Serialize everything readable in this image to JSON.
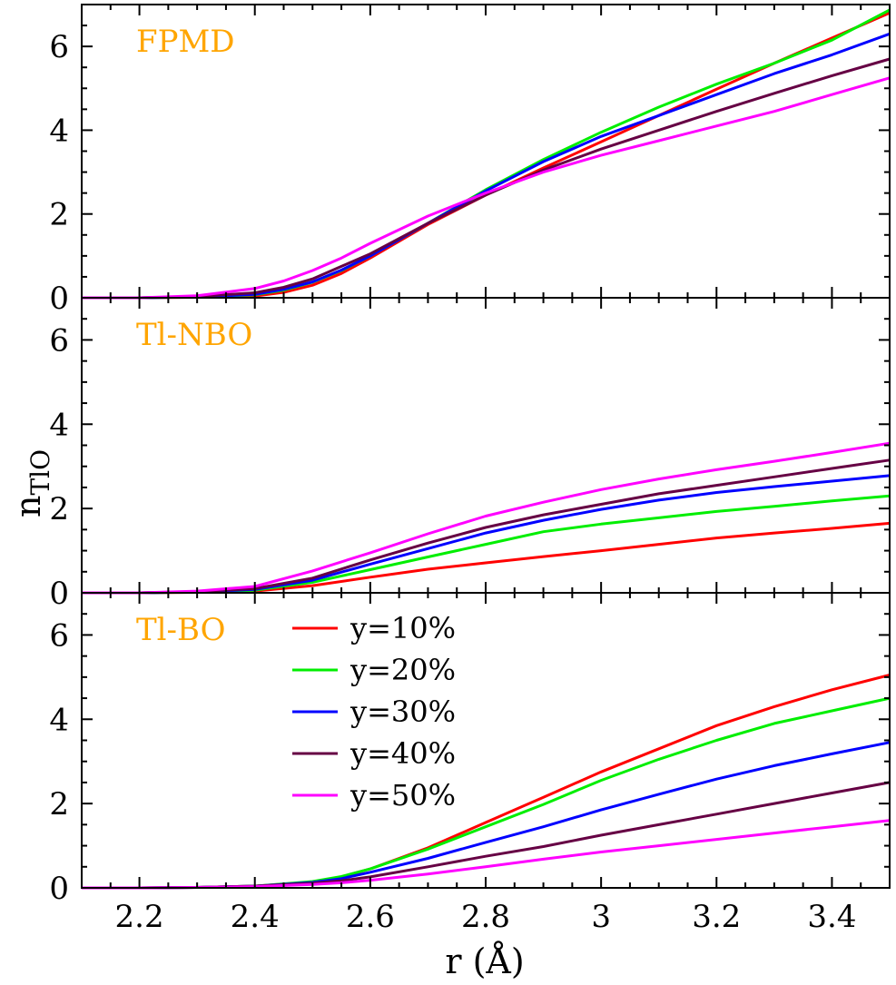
{
  "chart_data": {
    "type": "line",
    "xlabel": "r (Å)",
    "ylabel_main": "n",
    "ylabel_sub": "TlO",
    "xlim": [
      2.1,
      3.5
    ],
    "ylim": [
      0,
      7
    ],
    "xticks": [
      2.2,
      2.4,
      2.6,
      2.8,
      3.0,
      3.2,
      3.4
    ],
    "xtick_labels": [
      "2.2",
      "2.4",
      "2.6",
      "2.8",
      "3",
      "3.2",
      "3.4"
    ],
    "yticks": [
      0,
      2,
      4,
      6
    ],
    "ytick_labels": [
      "0",
      "2",
      "4",
      "6"
    ],
    "legend": {
      "placement": "bottom panel, upper-left",
      "entries": [
        {
          "name": "y=10%",
          "color": "#ff0000"
        },
        {
          "name": "y=20%",
          "color": "#00ee00"
        },
        {
          "name": "y=30%",
          "color": "#0000ff"
        },
        {
          "name": "y=40%",
          "color": "#660044"
        },
        {
          "name": "y=50%",
          "color": "#ff00ff"
        }
      ]
    },
    "panels": [
      {
        "label": "FPMD",
        "series": [
          {
            "name": "y=10%",
            "color": "#ff0000",
            "x": [
              2.1,
              2.2,
              2.3,
              2.4,
              2.45,
              2.5,
              2.55,
              2.6,
              2.7,
              2.8,
              2.9,
              3.0,
              3.1,
              3.2,
              3.3,
              3.4,
              3.5
            ],
            "y": [
              0,
              0,
              0.01,
              0.04,
              0.13,
              0.3,
              0.58,
              0.95,
              1.75,
              2.45,
              3.1,
              3.72,
              4.35,
              4.98,
              5.6,
              6.2,
              6.8
            ]
          },
          {
            "name": "y=20%",
            "color": "#00ee00",
            "x": [
              2.1,
              2.2,
              2.3,
              2.4,
              2.45,
              2.5,
              2.55,
              2.6,
              2.7,
              2.8,
              2.9,
              3.0,
              3.1,
              3.2,
              3.3,
              3.4,
              3.5
            ],
            "y": [
              0,
              0,
              0.02,
              0.07,
              0.18,
              0.37,
              0.65,
              1.0,
              1.78,
              2.58,
              3.3,
              3.95,
              4.55,
              5.1,
              5.6,
              6.15,
              6.87
            ]
          },
          {
            "name": "y=30%",
            "color": "#0000ff",
            "x": [
              2.1,
              2.2,
              2.3,
              2.4,
              2.45,
              2.5,
              2.55,
              2.6,
              2.7,
              2.8,
              2.9,
              3.0,
              3.1,
              3.2,
              3.3,
              3.4,
              3.5
            ],
            "y": [
              0,
              0,
              0.02,
              0.08,
              0.2,
              0.38,
              0.66,
              1.0,
              1.78,
              2.55,
              3.25,
              3.85,
              4.35,
              4.85,
              5.35,
              5.8,
              6.3
            ]
          },
          {
            "name": "y=40%",
            "color": "#660044",
            "x": [
              2.1,
              2.2,
              2.3,
              2.4,
              2.45,
              2.5,
              2.55,
              2.6,
              2.7,
              2.8,
              2.9,
              3.0,
              3.1,
              3.2,
              3.3,
              3.4,
              3.5
            ],
            "y": [
              0,
              0,
              0.03,
              0.12,
              0.25,
              0.45,
              0.75,
              1.05,
              1.78,
              2.45,
              3.05,
              3.55,
              4.0,
              4.45,
              4.88,
              5.3,
              5.7
            ]
          },
          {
            "name": "y=50%",
            "color": "#ff00ff",
            "x": [
              2.1,
              2.2,
              2.3,
              2.4,
              2.45,
              2.5,
              2.55,
              2.6,
              2.7,
              2.8,
              2.9,
              3.0,
              3.1,
              3.2,
              3.3,
              3.4,
              3.5
            ],
            "y": [
              0,
              0,
              0.05,
              0.22,
              0.4,
              0.65,
              0.95,
              1.3,
              1.95,
              2.5,
              3.0,
              3.4,
              3.75,
              4.1,
              4.45,
              4.85,
              5.25
            ]
          }
        ]
      },
      {
        "label": "Tl-NBO",
        "series": [
          {
            "name": "y=10%",
            "color": "#ff0000",
            "x": [
              2.1,
              2.2,
              2.3,
              2.4,
              2.5,
              2.6,
              2.7,
              2.8,
              2.9,
              3.0,
              3.1,
              3.2,
              3.3,
              3.4,
              3.5
            ],
            "y": [
              0,
              0,
              0.01,
              0.04,
              0.17,
              0.37,
              0.56,
              0.71,
              0.86,
              1.0,
              1.15,
              1.3,
              1.42,
              1.53,
              1.65
            ]
          },
          {
            "name": "y=20%",
            "color": "#00ee00",
            "x": [
              2.1,
              2.2,
              2.3,
              2.4,
              2.5,
              2.6,
              2.7,
              2.8,
              2.9,
              3.0,
              3.1,
              3.2,
              3.3,
              3.4,
              3.5
            ],
            "y": [
              0,
              0,
              0.02,
              0.06,
              0.25,
              0.55,
              0.85,
              1.15,
              1.45,
              1.63,
              1.78,
              1.93,
              2.05,
              2.18,
              2.3
            ]
          },
          {
            "name": "y=30%",
            "color": "#0000ff",
            "x": [
              2.1,
              2.2,
              2.3,
              2.4,
              2.5,
              2.6,
              2.7,
              2.8,
              2.9,
              3.0,
              3.1,
              3.2,
              3.3,
              3.4,
              3.5
            ],
            "y": [
              0,
              0,
              0.02,
              0.08,
              0.3,
              0.68,
              1.05,
              1.42,
              1.72,
              1.98,
              2.2,
              2.38,
              2.52,
              2.65,
              2.78
            ]
          },
          {
            "name": "y=40%",
            "color": "#660044",
            "x": [
              2.1,
              2.2,
              2.3,
              2.4,
              2.5,
              2.6,
              2.7,
              2.8,
              2.9,
              3.0,
              3.1,
              3.2,
              3.3,
              3.4,
              3.5
            ],
            "y": [
              0,
              0,
              0.03,
              0.1,
              0.35,
              0.78,
              1.18,
              1.55,
              1.85,
              2.1,
              2.35,
              2.55,
              2.75,
              2.95,
              3.15
            ]
          },
          {
            "name": "y=50%",
            "color": "#ff00ff",
            "x": [
              2.1,
              2.2,
              2.3,
              2.4,
              2.5,
              2.6,
              2.7,
              2.8,
              2.9,
              3.0,
              3.1,
              3.2,
              3.3,
              3.4,
              3.5
            ],
            "y": [
              0,
              0,
              0.04,
              0.15,
              0.52,
              0.95,
              1.4,
              1.82,
              2.15,
              2.45,
              2.7,
              2.92,
              3.12,
              3.33,
              3.55
            ]
          }
        ]
      },
      {
        "label": "Tl-BO",
        "series": [
          {
            "name": "y=10%",
            "color": "#ff0000",
            "x": [
              2.1,
              2.2,
              2.3,
              2.4,
              2.5,
              2.55,
              2.6,
              2.7,
              2.8,
              2.9,
              3.0,
              3.1,
              3.2,
              3.3,
              3.4,
              3.5
            ],
            "y": [
              0,
              0,
              0.01,
              0.04,
              0.14,
              0.26,
              0.45,
              0.95,
              1.55,
              2.15,
              2.75,
              3.3,
              3.85,
              4.3,
              4.7,
              5.05
            ]
          },
          {
            "name": "y=20%",
            "color": "#00ee00",
            "x": [
              2.1,
              2.2,
              2.3,
              2.4,
              2.5,
              2.55,
              2.6,
              2.7,
              2.8,
              2.9,
              3.0,
              3.1,
              3.2,
              3.3,
              3.4,
              3.5
            ],
            "y": [
              0,
              0,
              0.01,
              0.04,
              0.15,
              0.27,
              0.45,
              0.92,
              1.45,
              1.98,
              2.55,
              3.05,
              3.5,
              3.9,
              4.2,
              4.5
            ]
          },
          {
            "name": "y=30%",
            "color": "#0000ff",
            "x": [
              2.1,
              2.2,
              2.3,
              2.4,
              2.5,
              2.55,
              2.6,
              2.7,
              2.8,
              2.9,
              3.0,
              3.1,
              3.2,
              3.3,
              3.4,
              3.5
            ],
            "y": [
              0,
              0,
              0.01,
              0.04,
              0.13,
              0.22,
              0.37,
              0.7,
              1.08,
              1.45,
              1.85,
              2.22,
              2.58,
              2.9,
              3.18,
              3.45
            ]
          },
          {
            "name": "y=40%",
            "color": "#660044",
            "x": [
              2.1,
              2.2,
              2.3,
              2.4,
              2.5,
              2.55,
              2.6,
              2.7,
              2.8,
              2.9,
              3.0,
              3.1,
              3.2,
              3.3,
              3.4,
              3.5
            ],
            "y": [
              0,
              0,
              0.01,
              0.04,
              0.11,
              0.17,
              0.26,
              0.5,
              0.75,
              0.98,
              1.25,
              1.5,
              1.75,
              2.0,
              2.25,
              2.5
            ]
          },
          {
            "name": "y=50%",
            "color": "#ff00ff",
            "x": [
              2.1,
              2.2,
              2.3,
              2.4,
              2.5,
              2.55,
              2.6,
              2.7,
              2.8,
              2.9,
              3.0,
              3.1,
              3.2,
              3.3,
              3.4,
              3.5
            ],
            "y": [
              0,
              0,
              0.01,
              0.03,
              0.08,
              0.12,
              0.18,
              0.33,
              0.5,
              0.68,
              0.85,
              1.0,
              1.15,
              1.3,
              1.45,
              1.6
            ]
          }
        ]
      }
    ]
  }
}
